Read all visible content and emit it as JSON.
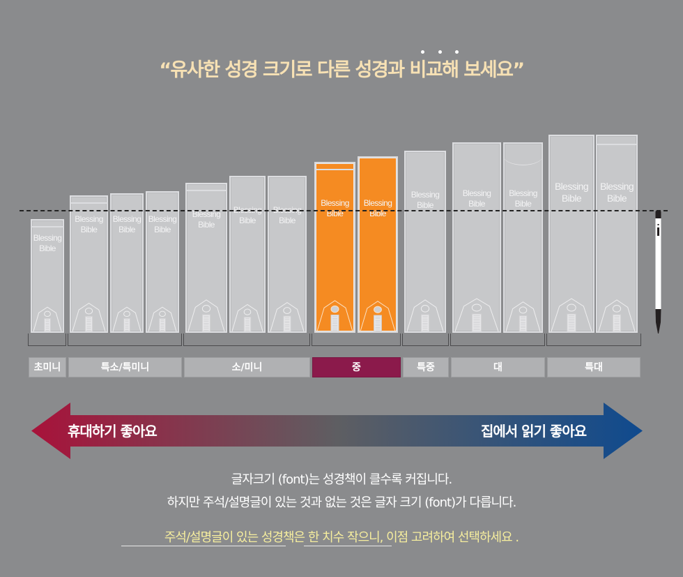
{
  "header": {
    "title": "“유사한 성경 크기로 다른 성경과 비교해 보세요”",
    "emphasis_dots": 3
  },
  "books": [
    {
      "label_line1": "Blessing",
      "label_line2": "Bible",
      "category": "초미니",
      "style": "band",
      "color": "gray"
    },
    {
      "label_line1": "Blessing",
      "label_line2": "Bible",
      "category": "특소/특미니",
      "style": "band",
      "color": "gray"
    },
    {
      "label_line1": "Blessing",
      "label_line2": "Bible",
      "category": "특소/특미니",
      "style": "plain",
      "color": "gray"
    },
    {
      "label_line1": "Blessing",
      "label_line2": "Bible",
      "category": "특소/특미니",
      "style": "plain",
      "color": "gray"
    },
    {
      "label_line1": "Blessing",
      "label_line2": "Bible",
      "category": "소/미니",
      "style": "band",
      "color": "gray"
    },
    {
      "label_line1": "Blessing",
      "label_line2": "Bible",
      "category": "소/미니",
      "style": "plain",
      "color": "gray"
    },
    {
      "label_line1": "Blessing",
      "label_line2": "Bible",
      "category": "소/미니",
      "style": "plain",
      "color": "gray"
    },
    {
      "label_line1": "Blessing",
      "label_line2": "Bible",
      "category": "중",
      "style": "band",
      "color": "orange"
    },
    {
      "label_line1": "Blessing",
      "label_line2": "Bible",
      "category": "중",
      "style": "plain",
      "color": "orange"
    },
    {
      "label_line1": "Blessing",
      "label_line2": "Bible",
      "category": "특중",
      "style": "plain",
      "color": "gray"
    },
    {
      "label_line1": "Blessing",
      "label_line2": "Bible",
      "category": "대",
      "style": "plain",
      "color": "gray"
    },
    {
      "label_line1": "Blessing",
      "label_line2": "Bible",
      "category": "대",
      "style": "curve",
      "color": "gray"
    },
    {
      "label_line1": "Blessing",
      "label_line2": "Bible",
      "category": "특대",
      "style": "plain",
      "color": "gray"
    },
    {
      "label_line1": "Blessing",
      "label_line2": "Bible",
      "category": "특대",
      "style": "band",
      "color": "gray"
    }
  ],
  "categories": [
    {
      "label": "초미니",
      "active": false
    },
    {
      "label": "특소/특미니",
      "active": false
    },
    {
      "label": "소/미니",
      "active": false
    },
    {
      "label": "중",
      "active": true
    },
    {
      "label": "특중",
      "active": false
    },
    {
      "label": "대",
      "active": false
    },
    {
      "label": "특대",
      "active": false
    }
  ],
  "scale_arrow": {
    "left_label": "휴대하기 좋아요",
    "right_label": "집에서 읽기 좋아요",
    "left_color": "#a8123a",
    "mid_color": "#5e5e62",
    "right_color": "#0f4a8e"
  },
  "description": {
    "line1": "글자크기 (font)는 성경책이 클수록 커집니다.",
    "line2": "하지만 주석/설명글이 있는 것과 없는 것은 글자 크기 (font)가 다릅니다."
  },
  "note": {
    "text": "주석/설명글이 있는 성경책은 한 치수 작으니, 이점 고려하여 선택하세요 ."
  },
  "colors": {
    "background": "#8a8b8d",
    "title": "#f7e1b4",
    "book_gray": "#c7c8ca",
    "book_orange": "#f58b22",
    "active_category": "#8b1a4b",
    "note": "#f6ee9e"
  }
}
